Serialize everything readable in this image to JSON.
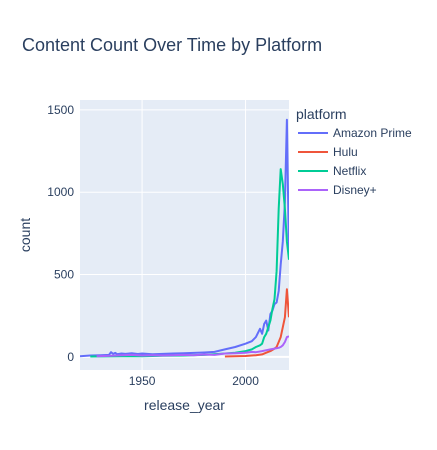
{
  "chart_data": {
    "type": "line",
    "title": "Content Count Over Time by Platform",
    "xlabel": "release_year",
    "ylabel": "count",
    "xlim": [
      1920,
      2021
    ],
    "ylim": [
      -80,
      1560
    ],
    "xticks": [
      1950,
      2000
    ],
    "yticks": [
      0,
      500,
      1000,
      1500
    ],
    "grid": true,
    "plot_background": "#e5ecf6",
    "legend": {
      "title": "platform",
      "position": "right"
    },
    "series": [
      {
        "name": "Amazon Prime",
        "color": "#636efa",
        "x": [
          1920,
          1925,
          1930,
          1934,
          1935,
          1936,
          1937,
          1938,
          1940,
          1942,
          1945,
          1948,
          1950,
          1955,
          1960,
          1965,
          1970,
          1975,
          1980,
          1985,
          1990,
          1995,
          2000,
          2003,
          2005,
          2007,
          2008,
          2009,
          2010,
          2011,
          2012,
          2013,
          2014,
          2015,
          2016,
          2017,
          2018,
          2019,
          2020,
          2021
        ],
        "values": [
          4,
          8,
          10,
          12,
          28,
          18,
          24,
          16,
          20,
          18,
          22,
          17,
          20,
          16,
          18,
          20,
          22,
          24,
          26,
          30,
          45,
          60,
          80,
          95,
          120,
          170,
          140,
          200,
          220,
          160,
          260,
          280,
          320,
          330,
          400,
          560,
          700,
          940,
          1440,
          600
        ]
      },
      {
        "name": "Hulu",
        "color": "#ef553b",
        "x": [
          1990,
          1995,
          2000,
          2005,
          2008,
          2010,
          2012,
          2014,
          2015,
          2016,
          2017,
          2018,
          2019,
          2020,
          2021
        ],
        "values": [
          2,
          3,
          5,
          10,
          15,
          25,
          35,
          50,
          60,
          90,
          120,
          180,
          240,
          410,
          240
        ]
      },
      {
        "name": "Netflix",
        "color": "#00cc96",
        "x": [
          1925,
          1940,
          1950,
          1960,
          1970,
          1980,
          1990,
          1995,
          2000,
          2003,
          2005,
          2007,
          2008,
          2009,
          2010,
          2011,
          2012,
          2013,
          2014,
          2015,
          2016,
          2017,
          2018,
          2019,
          2020,
          2021
        ],
        "values": [
          2,
          3,
          4,
          6,
          8,
          12,
          20,
          25,
          35,
          45,
          60,
          70,
          80,
          120,
          140,
          180,
          220,
          290,
          350,
          520,
          900,
          1140,
          1050,
          900,
          700,
          590
        ]
      },
      {
        "name": "Disney+",
        "color": "#ab63fa",
        "x": [
          1928,
          1935,
          1940,
          1945,
          1950,
          1955,
          1960,
          1965,
          1970,
          1975,
          1980,
          1985,
          1990,
          1995,
          2000,
          2003,
          2005,
          2008,
          2010,
          2012,
          2014,
          2016,
          2017,
          2018,
          2019,
          2020,
          2021
        ],
        "values": [
          3,
          6,
          10,
          12,
          8,
          10,
          8,
          10,
          12,
          10,
          14,
          12,
          20,
          22,
          25,
          30,
          28,
          35,
          40,
          45,
          50,
          55,
          60,
          70,
          90,
          120,
          125
        ]
      }
    ]
  }
}
